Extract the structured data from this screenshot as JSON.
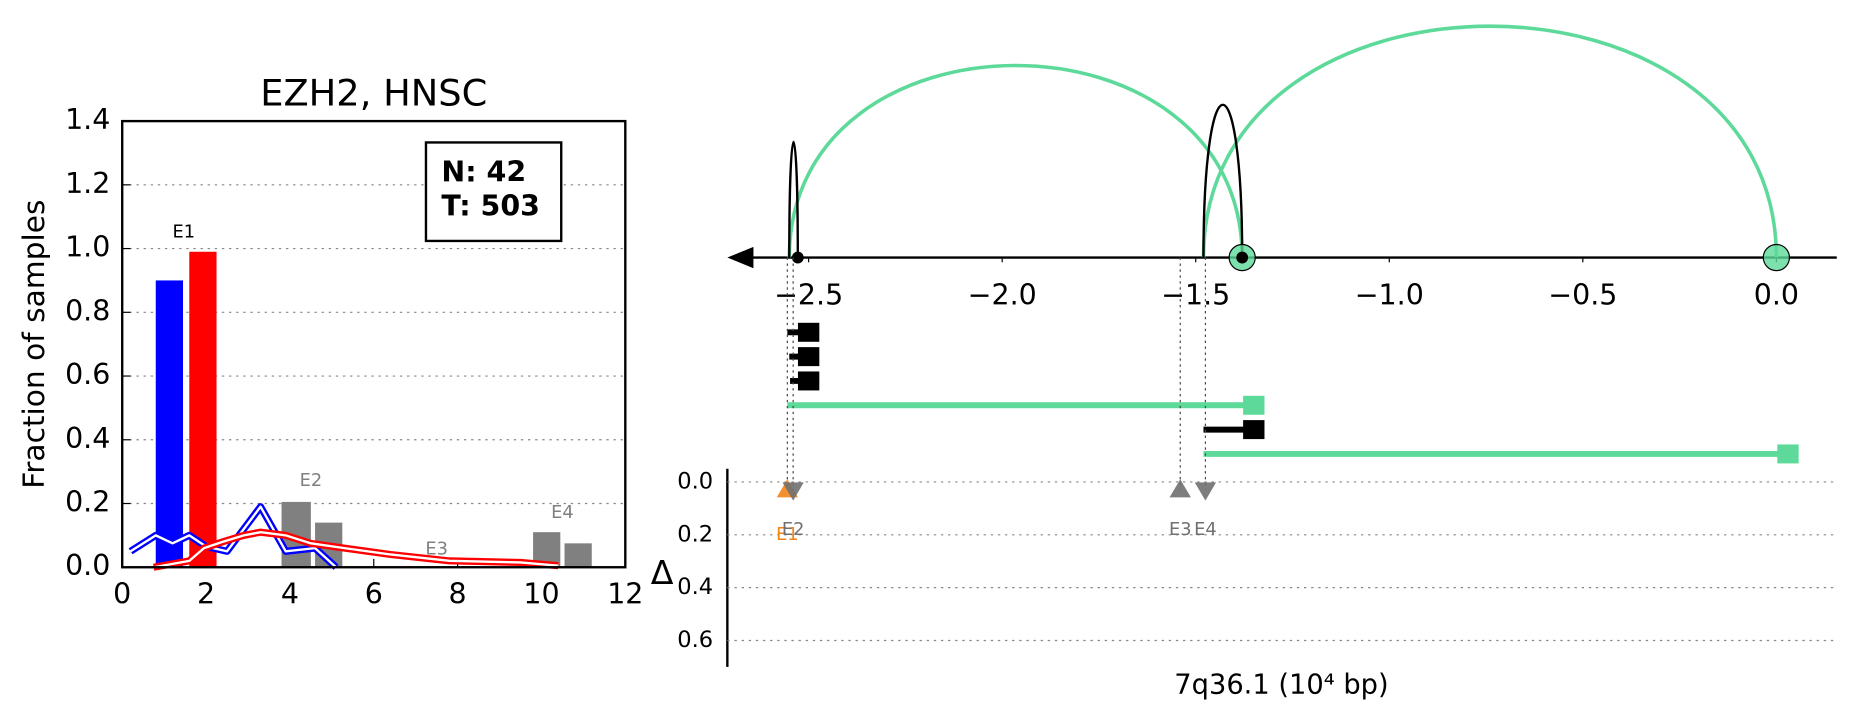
{
  "chart_data": [
    {
      "type": "bar",
      "title": "EZH2, HNSC",
      "ylabel": "Fraction of samples",
      "xlim": [
        0,
        12
      ],
      "ylim": [
        0,
        1.4
      ],
      "xticks": [
        0,
        2,
        4,
        6,
        8,
        10,
        12
      ],
      "yticks": [
        {
          "value": 0,
          "label": "0.0"
        },
        {
          "value": 0.2,
          "label": "0.2"
        },
        {
          "value": 0.4,
          "label": "0.4"
        },
        {
          "value": 0.6,
          "label": "0.6"
        },
        {
          "value": 0.8,
          "label": "0.8"
        },
        {
          "value": 1.0,
          "label": "1.0"
        },
        {
          "value": 1.2,
          "label": "1.2"
        },
        {
          "value": 1.4,
          "label": "1.4"
        }
      ],
      "grid": true,
      "bars": {
        "x0": [
          0.8,
          1.6,
          3.8,
          4.6,
          9.8,
          10.55
        ],
        "x1": [
          1.45,
          2.25,
          4.5,
          5.25,
          10.45,
          11.2
        ],
        "values": [
          0.9,
          0.99,
          0.205,
          0.14,
          0.11,
          0.075
        ],
        "colors": [
          "#0000ff",
          "#ff0000",
          "#808080",
          "#808080",
          "#808080",
          "#808080"
        ]
      },
      "series": [
        {
          "color": "#0000ff",
          "x": [
            0.2,
            0.8,
            1.2,
            1.6,
            2.0,
            2.5,
            3.3,
            3.9,
            4.6,
            5.1
          ],
          "values": [
            0.05,
            0.1,
            0.075,
            0.1,
            0.065,
            0.05,
            0.19,
            0.05,
            0.06,
            0.0
          ]
        },
        {
          "color": "#ff0000",
          "x": [
            0.75,
            1.6,
            1.95,
            2.4,
            2.9,
            3.3,
            3.9,
            4.5,
            5.3,
            6.4,
            7.8,
            9.5,
            10.4
          ],
          "values": [
            0.0,
            0.02,
            0.06,
            0.08,
            0.1,
            0.11,
            0.1,
            0.075,
            0.06,
            0.04,
            0.02,
            0.015,
            0.005
          ]
        }
      ],
      "annotations": [
        {
          "text": "E1",
          "x": 1.47,
          "y": 1.05,
          "color": "#000000"
        },
        {
          "text": "E2",
          "x": 4.5,
          "y": 0.27,
          "color": "#808080"
        },
        {
          "text": "E3",
          "x": 7.5,
          "y": 0.056,
          "color": "#808080"
        },
        {
          "text": "E4",
          "x": 10.5,
          "y": 0.17,
          "color": "#808080"
        }
      ],
      "legend_box": [
        "N: 42",
        "T: 503"
      ]
    },
    {
      "type": "arc",
      "xlabel": "7q36.1 (10⁴ bp)",
      "xlim": [
        -2.71,
        0.156
      ],
      "xticks": [
        {
          "value": -2.5,
          "label": "−2.5"
        },
        {
          "value": -2.0,
          "label": "−2.0"
        },
        {
          "value": -1.5,
          "label": "−1.5"
        },
        {
          "value": -1.0,
          "label": "−1.0"
        },
        {
          "value": -0.5,
          "label": "−0.5"
        },
        {
          "value": 0,
          "label": "0.0"
        }
      ],
      "arcs": [
        {
          "start": -2.55,
          "end": -1.38,
          "height": 0.83,
          "color": "#5dd99a"
        },
        {
          "start": -1.48,
          "end": 0.0,
          "height": 1.0,
          "color": "#5dd99a"
        },
        {
          "start": -2.55,
          "end": -2.528,
          "height": 0.5,
          "color": "#000000"
        },
        {
          "start": -1.48,
          "end": -1.38,
          "height": 0.66,
          "color": "#000000"
        }
      ],
      "isoforms": [
        {
          "start": -2.555,
          "end": -2.5,
          "color": "#000000"
        },
        {
          "start": -2.55,
          "end": -2.5,
          "color": "#000000"
        },
        {
          "start": -2.548,
          "end": -2.5,
          "color": "#000000"
        },
        {
          "start": -2.555,
          "end": -1.35,
          "color": "#5dd99a"
        },
        {
          "start": -1.48,
          "end": -1.35,
          "color": "#000000"
        },
        {
          "start": -1.48,
          "end": 0.03,
          "color": "#5dd99a"
        }
      ],
      "delta": {
        "ylabel": "Δ",
        "ylim": [
          -0.05,
          0.7
        ],
        "yticks": [
          {
            "value": 0,
            "label": "0.0"
          },
          {
            "value": 0.2,
            "label": "0.2"
          },
          {
            "value": 0.4,
            "label": "0.4"
          },
          {
            "value": 0.6,
            "label": "0.6"
          }
        ],
        "markers": [
          {
            "label": "E1",
            "x": -2.555,
            "delta": 0.03,
            "shape": "up",
            "color": "#f28518"
          },
          {
            "label": "E2",
            "x": -2.54,
            "delta": 0.03,
            "shape": "down",
            "color": "#707070"
          },
          {
            "label": "E3",
            "x": -1.54,
            "delta": 0.03,
            "shape": "up",
            "color": "#707070"
          },
          {
            "label": "E4",
            "x": -1.475,
            "delta": 0.03,
            "shape": "down",
            "color": "#707070"
          }
        ]
      }
    }
  ]
}
